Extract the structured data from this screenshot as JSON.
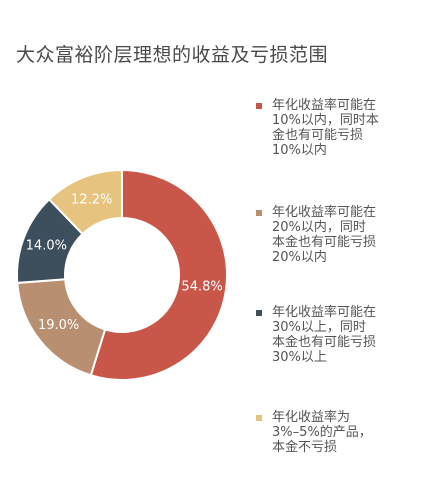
{
  "title": "大众富裕阶层理想的收益及亏损范围",
  "chart_data": {
    "type": "pie",
    "subtype": "donut",
    "series": [
      {
        "label": "年化收益率可能在\n10%以内，同时本\n金也有可能亏损\n10%以内",
        "value": 54.8,
        "display": "54.8%",
        "color": "#c8574a"
      },
      {
        "label": "年化收益率可能在\n20%以内，同时\n本金也有可能亏损\n20%以内",
        "value": 19.0,
        "display": "19.0%",
        "color": "#b98f72"
      },
      {
        "label": "年化收益率可能在\n30%以上，同时\n本金也有可能亏损\n30%以上",
        "value": 14.0,
        "display": "14.0%",
        "color": "#3d4e5c"
      },
      {
        "label": "年化收益率为\n3%–5%的产品，\n本金不亏损",
        "value": 12.2,
        "display": "12.2%",
        "color": "#e6c37f"
      }
    ],
    "legend_position": "right"
  }
}
